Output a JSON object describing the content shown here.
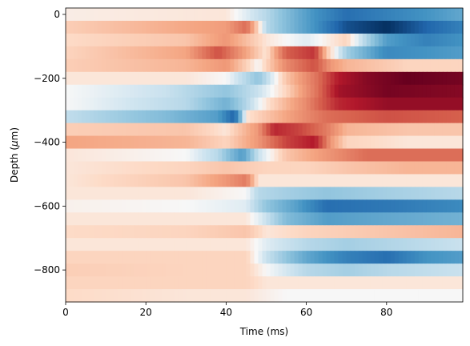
{
  "chart_data": {
    "type": "heatmap",
    "title": "",
    "xlabel": "Time (ms)",
    "ylabel_prefix": "Depth (",
    "ylabel_unit": "μ",
    "ylabel_suffix": "m)",
    "xlim": [
      0,
      99
    ],
    "ylim": [
      -900,
      20
    ],
    "xticks": [
      0,
      20,
      40,
      60,
      80
    ],
    "yticks": [
      0,
      -200,
      -400,
      -600,
      -800
    ],
    "ytick_labels": [
      "0",
      "−200",
      "−400",
      "−600",
      "−800"
    ],
    "colormap": "RdBu_r",
    "value_range": [
      -1,
      1
    ],
    "colors": {
      "strong_red": "#67001f",
      "red": "#b2182b",
      "light_red": "#f4a582",
      "white": "#f7f7f7",
      "light_blue": "#92c5de",
      "blue": "#2166ac",
      "strong_blue": "#053061"
    },
    "row_depths": [
      0,
      -40,
      -80,
      -120,
      -160,
      -200,
      -240,
      -280,
      -320,
      -360,
      -400,
      -440,
      -480,
      -520,
      -560,
      -600,
      -640,
      -680,
      -720,
      -760,
      -800,
      -840,
      -880
    ],
    "row_profiles": [
      [
        [
          0,
          0.03
        ],
        [
          40,
          0.05
        ],
        [
          50,
          -0.15
        ],
        [
          62,
          -0.5
        ],
        [
          70,
          -0.7
        ],
        [
          85,
          -0.55
        ],
        [
          99,
          -0.4
        ]
      ],
      [
        [
          0,
          0.12
        ],
        [
          40,
          0.28
        ],
        [
          45,
          0.45
        ],
        [
          50,
          -0.15
        ],
        [
          62,
          -0.5
        ],
        [
          70,
          -0.85
        ],
        [
          80,
          -1.0
        ],
        [
          90,
          -0.75
        ],
        [
          99,
          -0.6
        ]
      ],
      [
        [
          0,
          0.08
        ],
        [
          30,
          0.15
        ],
        [
          40,
          0.3
        ],
        [
          50,
          0.05
        ],
        [
          60,
          -0.05
        ],
        [
          70,
          0.1
        ],
        [
          80,
          -0.45
        ],
        [
          90,
          -0.6
        ],
        [
          99,
          -0.5
        ]
      ],
      [
        [
          0,
          0.1
        ],
        [
          30,
          0.25
        ],
        [
          38,
          0.55
        ],
        [
          45,
          0.25
        ],
        [
          50,
          0.05
        ],
        [
          55,
          0.5
        ],
        [
          62,
          0.65
        ],
        [
          65,
          0.15
        ],
        [
          70,
          -0.2
        ],
        [
          80,
          -0.55
        ],
        [
          99,
          -0.45
        ]
      ],
      [
        [
          0,
          0.12
        ],
        [
          30,
          0.2
        ],
        [
          40,
          0.3
        ],
        [
          48,
          0.0
        ],
        [
          55,
          0.35
        ],
        [
          62,
          0.55
        ],
        [
          66,
          0.3
        ],
        [
          70,
          0.2
        ],
        [
          85,
          0.1
        ],
        [
          99,
          0.1
        ]
      ],
      [
        [
          0,
          0.05
        ],
        [
          30,
          0.05
        ],
        [
          40,
          0.0
        ],
        [
          48,
          -0.25
        ],
        [
          55,
          0.15
        ],
        [
          63,
          0.45
        ],
        [
          68,
          0.75
        ],
        [
          75,
          0.9
        ],
        [
          85,
          1.0
        ],
        [
          99,
          0.95
        ]
      ],
      [
        [
          0,
          0.0
        ],
        [
          25,
          -0.1
        ],
        [
          40,
          -0.25
        ],
        [
          48,
          -0.1
        ],
        [
          55,
          0.1
        ],
        [
          63,
          0.45
        ],
        [
          68,
          0.8
        ],
        [
          80,
          0.95
        ],
        [
          99,
          0.9
        ]
      ],
      [
        [
          0,
          0.0
        ],
        [
          30,
          -0.15
        ],
        [
          40,
          -0.35
        ],
        [
          44,
          -0.2
        ],
        [
          50,
          0.05
        ],
        [
          60,
          0.35
        ],
        [
          68,
          0.7
        ],
        [
          80,
          0.85
        ],
        [
          99,
          0.85
        ]
      ],
      [
        [
          0,
          -0.12
        ],
        [
          25,
          -0.3
        ],
        [
          38,
          -0.45
        ],
        [
          42,
          -0.75
        ],
        [
          45,
          0.05
        ],
        [
          55,
          0.25
        ],
        [
          65,
          0.45
        ],
        [
          80,
          0.55
        ],
        [
          99,
          0.5
        ]
      ],
      [
        [
          0,
          0.12
        ],
        [
          30,
          0.15
        ],
        [
          40,
          0.05
        ],
        [
          48,
          0.3
        ],
        [
          52,
          0.7
        ],
        [
          58,
          0.6
        ],
        [
          65,
          0.4
        ],
        [
          70,
          0.2
        ],
        [
          85,
          0.15
        ],
        [
          99,
          0.15
        ]
      ],
      [
        [
          0,
          0.25
        ],
        [
          30,
          0.2
        ],
        [
          40,
          0.1
        ],
        [
          48,
          0.3
        ],
        [
          55,
          0.6
        ],
        [
          62,
          0.75
        ],
        [
          66,
          0.3
        ],
        [
          70,
          0.1
        ],
        [
          85,
          0.05
        ],
        [
          99,
          0.05
        ]
      ],
      [
        [
          0,
          0.05
        ],
        [
          30,
          0.0
        ],
        [
          38,
          -0.15
        ],
        [
          44,
          -0.45
        ],
        [
          48,
          -0.1
        ],
        [
          55,
          0.15
        ],
        [
          65,
          0.3
        ],
        [
          75,
          0.45
        ],
        [
          99,
          0.45
        ]
      ],
      [
        [
          0,
          0.05
        ],
        [
          30,
          0.1
        ],
        [
          40,
          0.15
        ],
        [
          50,
          0.1
        ],
        [
          60,
          0.1
        ],
        [
          70,
          0.15
        ],
        [
          85,
          0.2
        ],
        [
          99,
          0.2
        ]
      ],
      [
        [
          0,
          0.05
        ],
        [
          30,
          0.15
        ],
        [
          40,
          0.3
        ],
        [
          45,
          0.4
        ],
        [
          48,
          0.05
        ],
        [
          60,
          0.05
        ],
        [
          80,
          0.05
        ],
        [
          99,
          0.05
        ]
      ],
      [
        [
          0,
          0.05
        ],
        [
          30,
          0.05
        ],
        [
          45,
          0.0
        ],
        [
          48,
          -0.15
        ],
        [
          55,
          -0.2
        ],
        [
          65,
          -0.25
        ],
        [
          80,
          -0.2
        ],
        [
          99,
          -0.15
        ]
      ],
      [
        [
          0,
          0.02
        ],
        [
          30,
          0.0
        ],
        [
          45,
          -0.05
        ],
        [
          50,
          -0.25
        ],
        [
          58,
          -0.45
        ],
        [
          65,
          -0.7
        ],
        [
          80,
          -0.65
        ],
        [
          99,
          -0.55
        ]
      ],
      [
        [
          0,
          0.05
        ],
        [
          30,
          0.05
        ],
        [
          45,
          0.05
        ],
        [
          50,
          -0.1
        ],
        [
          55,
          -0.3
        ],
        [
          65,
          -0.45
        ],
        [
          80,
          -0.4
        ],
        [
          99,
          -0.35
        ]
      ],
      [
        [
          0,
          0.08
        ],
        [
          30,
          0.1
        ],
        [
          45,
          0.15
        ],
        [
          50,
          0.05
        ],
        [
          60,
          0.1
        ],
        [
          80,
          0.15
        ],
        [
          99,
          0.2
        ]
      ],
      [
        [
          0,
          0.05
        ],
        [
          30,
          0.05
        ],
        [
          45,
          0.05
        ],
        [
          50,
          -0.05
        ],
        [
          60,
          -0.15
        ],
        [
          70,
          -0.2
        ],
        [
          85,
          -0.15
        ],
        [
          99,
          -0.1
        ]
      ],
      [
        [
          0,
          0.1
        ],
        [
          30,
          0.1
        ],
        [
          45,
          0.1
        ],
        [
          50,
          -0.1
        ],
        [
          60,
          -0.4
        ],
        [
          70,
          -0.6
        ],
        [
          80,
          -0.7
        ],
        [
          90,
          -0.5
        ],
        [
          99,
          -0.45
        ]
      ],
      [
        [
          0,
          0.12
        ],
        [
          30,
          0.1
        ],
        [
          45,
          0.1
        ],
        [
          50,
          0.0
        ],
        [
          60,
          -0.15
        ],
        [
          70,
          -0.2
        ],
        [
          80,
          -0.15
        ],
        [
          99,
          -0.1
        ]
      ],
      [
        [
          0,
          0.1
        ],
        [
          30,
          0.1
        ],
        [
          45,
          0.1
        ],
        [
          50,
          0.05
        ],
        [
          60,
          0.05
        ],
        [
          80,
          0.05
        ],
        [
          99,
          0.05
        ]
      ],
      [
        [
          0,
          0.08
        ],
        [
          30,
          0.05
        ],
        [
          45,
          0.05
        ],
        [
          55,
          0.0
        ],
        [
          70,
          0.0
        ],
        [
          99,
          0.0
        ]
      ]
    ]
  }
}
